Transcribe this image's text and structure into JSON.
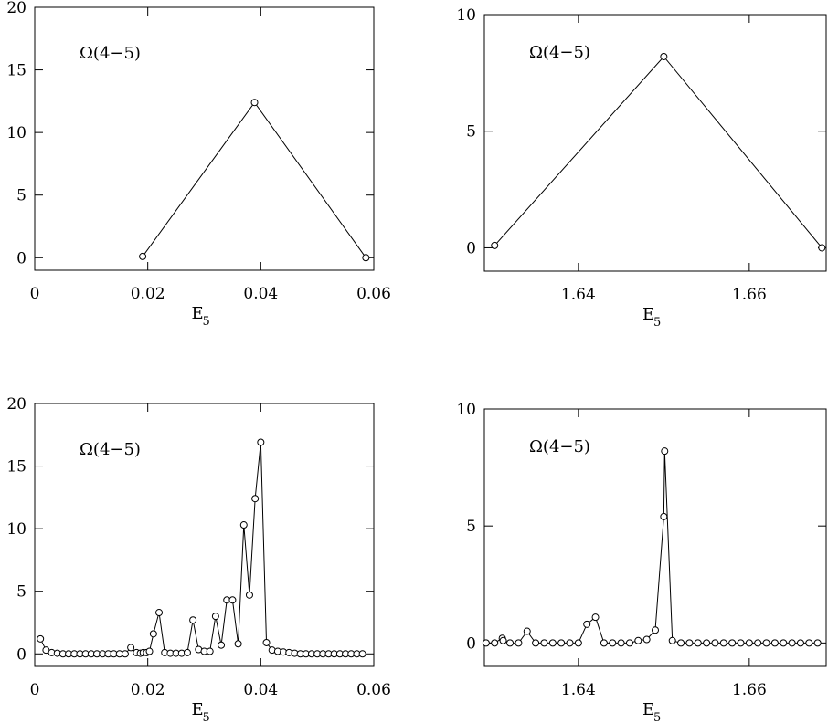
{
  "chart_data": [
    {
      "type": "line",
      "panel_label": "Ω(4−5)",
      "xlabel": "E",
      "xlabel_subscript": "5",
      "ylabel": "",
      "xlim": [
        0,
        0.06
      ],
      "ylim": [
        -1,
        20
      ],
      "xticks": [
        0,
        0.02,
        0.04,
        0.06
      ],
      "xtick_labels": [
        "0",
        "0.02",
        "0.04",
        "0.06"
      ],
      "yticks": [
        0,
        5,
        10,
        15,
        20
      ],
      "ytick_labels": [
        "0",
        "5",
        "10",
        "15",
        "20"
      ],
      "grid": false,
      "markers": "open-circle",
      "series": [
        {
          "x": [
            0.0191,
            0.0389,
            0.0586
          ],
          "y": [
            0.1,
            12.4,
            0.0
          ]
        }
      ]
    },
    {
      "type": "line",
      "panel_label": "Ω(4−5)",
      "xlabel": "E",
      "xlabel_subscript": "5",
      "ylabel": "",
      "xlim": [
        1.629,
        1.669
      ],
      "ylim": [
        -1,
        10
      ],
      "xticks": [
        1.64,
        1.66
      ],
      "xtick_labels": [
        "1.64",
        "1.66"
      ],
      "yticks": [
        0,
        5,
        10
      ],
      "ytick_labels": [
        "0",
        "5",
        "10"
      ],
      "grid": false,
      "markers": "open-circle",
      "series": [
        {
          "x": [
            1.6302,
            1.65,
            1.6685
          ],
          "y": [
            0.1,
            8.2,
            0.0
          ]
        }
      ]
    },
    {
      "type": "line",
      "panel_label": "Ω(4−5)",
      "xlabel": "E",
      "xlabel_subscript": "5",
      "ylabel": "",
      "xlim": [
        0,
        0.06
      ],
      "ylim": [
        -1,
        20
      ],
      "xticks": [
        0,
        0.02,
        0.04,
        0.06
      ],
      "xtick_labels": [
        "0",
        "0.02",
        "0.04",
        "0.06"
      ],
      "yticks": [
        0,
        5,
        10,
        15,
        20
      ],
      "ytick_labels": [
        "0",
        "5",
        "10",
        "15",
        "20"
      ],
      "grid": false,
      "markers": "open-circle",
      "series": [
        {
          "x": [
            0.001,
            0.002,
            0.003,
            0.004,
            0.005,
            0.006,
            0.007,
            0.008,
            0.009,
            0.01,
            0.011,
            0.012,
            0.013,
            0.014,
            0.015,
            0.016,
            0.017,
            0.018,
            0.0187,
            0.0192,
            0.0198,
            0.0203,
            0.021,
            0.022,
            0.023,
            0.024,
            0.025,
            0.026,
            0.027,
            0.028,
            0.029,
            0.03,
            0.031,
            0.032,
            0.033,
            0.034,
            0.035,
            0.036,
            0.037,
            0.038,
            0.039,
            0.04,
            0.041,
            0.042,
            0.043,
            0.044,
            0.045,
            0.046,
            0.047,
            0.048,
            0.049,
            0.05,
            0.051,
            0.052,
            0.053,
            0.054,
            0.055,
            0.056,
            0.057,
            0.058
          ],
          "y": [
            1.2,
            0.3,
            0.1,
            0.05,
            0.0,
            0.0,
            0.0,
            0.0,
            0.0,
            0.0,
            0.0,
            0.0,
            0.0,
            0.0,
            0.0,
            0.0,
            0.5,
            0.1,
            0.05,
            0.1,
            0.1,
            0.2,
            1.6,
            3.3,
            0.1,
            0.05,
            0.05,
            0.05,
            0.1,
            2.7,
            0.35,
            0.2,
            0.2,
            3.0,
            0.7,
            4.3,
            4.3,
            0.8,
            10.3,
            4.7,
            12.4,
            16.9,
            0.9,
            0.3,
            0.2,
            0.15,
            0.1,
            0.05,
            0.0,
            0.0,
            0.0,
            0.0,
            0.0,
            0.0,
            0.0,
            0.0,
            0.0,
            0.0,
            0.0,
            0.0
          ]
        }
      ]
    },
    {
      "type": "line",
      "panel_label": "Ω(4−5)",
      "xlabel": "E",
      "xlabel_subscript": "5",
      "ylabel": "",
      "xlim": [
        1.629,
        1.669
      ],
      "ylim": [
        -1,
        10
      ],
      "xticks": [
        1.64,
        1.66
      ],
      "xtick_labels": [
        "1.64",
        "1.66"
      ],
      "yticks": [
        0,
        5,
        10
      ],
      "ytick_labels": [
        "0",
        "5",
        "10"
      ],
      "grid": false,
      "markers": "open-circle",
      "series": [
        {
          "x": [
            1.6292,
            1.6302,
            1.6311,
            1.6312,
            1.632,
            1.633,
            1.634,
            1.635,
            1.636,
            1.637,
            1.638,
            1.639,
            1.64,
            1.641,
            1.642,
            1.643,
            1.644,
            1.645,
            1.646,
            1.647,
            1.648,
            1.649,
            1.65,
            1.6501,
            1.651,
            1.652,
            1.653,
            1.654,
            1.655,
            1.656,
            1.657,
            1.658,
            1.659,
            1.66,
            1.661,
            1.662,
            1.663,
            1.664,
            1.665,
            1.666,
            1.667,
            1.668
          ],
          "y": [
            0.0,
            0.0,
            0.2,
            0.1,
            0.0,
            0.0,
            0.5,
            0.0,
            0.0,
            0.0,
            0.0,
            0.0,
            0.0,
            0.8,
            1.1,
            0.0,
            0.0,
            0.0,
            0.0,
            0.1,
            0.15,
            0.55,
            5.4,
            8.2,
            0.1,
            0.0,
            0.0,
            0.0,
            0.0,
            0.0,
            0.0,
            0.0,
            0.0,
            0.0,
            0.0,
            0.0,
            0.0,
            0.0,
            0.0,
            0.0,
            0.0,
            0.0
          ]
        }
      ]
    }
  ]
}
